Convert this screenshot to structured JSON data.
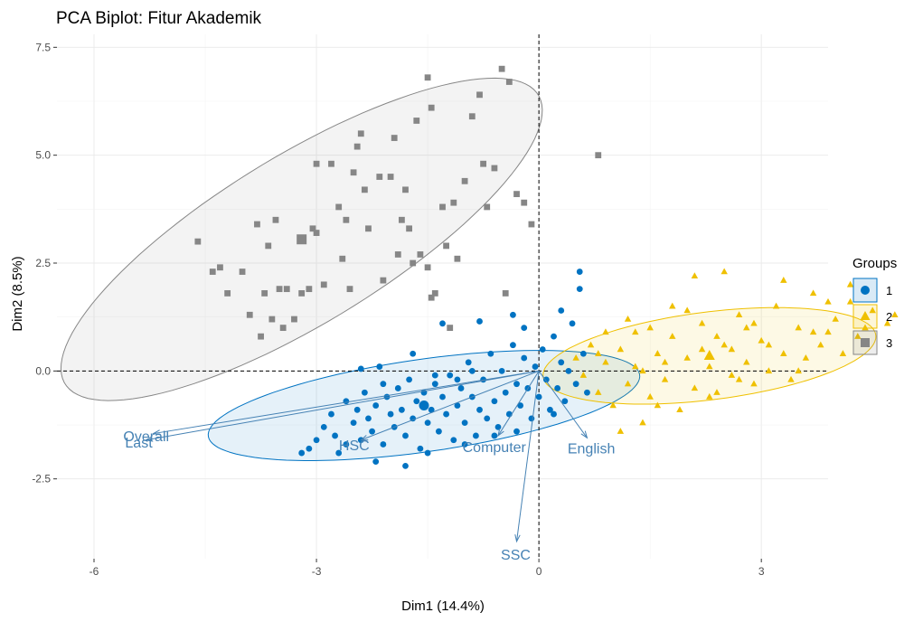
{
  "chart_data": {
    "type": "scatter",
    "title": "PCA Biplot: Fitur Akademik",
    "xlabel": "Dim1 (14.4%)",
    "ylabel": "Dim2 (8.5%)",
    "xlim": [
      -6.5,
      3.9
    ],
    "ylim": [
      -4.35,
      7.8
    ],
    "x_ticks": [
      -6,
      -3,
      0,
      3
    ],
    "x_tick_labels": [
      "-6",
      "-3",
      "0",
      "3"
    ],
    "y_ticks": [
      -2.5,
      0,
      2.5,
      5,
      7.5
    ],
    "y_tick_labels": [
      "-2.5",
      "0.0",
      "2.5",
      "5.0",
      "7.5"
    ],
    "grid": true,
    "reference_lines": {
      "x": 0,
      "y": 0,
      "style": "dashed"
    },
    "legend": {
      "title": "Groups",
      "position": "right",
      "entries": [
        {
          "label": "1",
          "color": "#0073C2",
          "shape": "circle"
        },
        {
          "label": "2",
          "color": "#EFC000",
          "shape": "triangle"
        },
        {
          "label": "3",
          "color": "#868686",
          "shape": "square"
        }
      ]
    },
    "groups": [
      {
        "name": "1",
        "color": "#0073C2",
        "shape": "circle",
        "ellipse": {
          "center": [
            -1.55,
            -0.8
          ],
          "rx": 3.0,
          "ry": 1.05,
          "angle_deg": 15.0
        },
        "points": [
          [
            -3.1,
            -1.8
          ],
          [
            -3.0,
            -1.6
          ],
          [
            -2.9,
            -1.3
          ],
          [
            -2.8,
            -1.0
          ],
          [
            -2.75,
            -1.5
          ],
          [
            -2.7,
            -1.9
          ],
          [
            -2.6,
            -0.7
          ],
          [
            -2.5,
            -1.2
          ],
          [
            -2.45,
            -0.9
          ],
          [
            -2.4,
            -1.6
          ],
          [
            -2.35,
            -0.5
          ],
          [
            -2.3,
            -1.1
          ],
          [
            -2.25,
            -1.4
          ],
          [
            -2.2,
            -0.8
          ],
          [
            -2.1,
            -1.7
          ],
          [
            -2.05,
            -0.6
          ],
          [
            -2.0,
            -1.0
          ],
          [
            -1.95,
            -1.3
          ],
          [
            -1.9,
            -0.4
          ],
          [
            -1.85,
            -0.9
          ],
          [
            -1.8,
            -1.5
          ],
          [
            -1.75,
            -0.2
          ],
          [
            -1.7,
            -1.1
          ],
          [
            -1.65,
            -0.7
          ],
          [
            -1.6,
            -1.8
          ],
          [
            -1.55,
            -0.5
          ],
          [
            -1.5,
            -1.2
          ],
          [
            -1.45,
            -0.9
          ],
          [
            -1.4,
            -0.3
          ],
          [
            -1.35,
            -1.4
          ],
          [
            -1.3,
            -0.6
          ],
          [
            -1.25,
            -1.0
          ],
          [
            -1.2,
            -0.1
          ],
          [
            -1.15,
            -1.6
          ],
          [
            -1.1,
            -0.8
          ],
          [
            -1.05,
            -0.4
          ],
          [
            -1.0,
            -1.2
          ],
          [
            -0.95,
            0.2
          ],
          [
            -0.9,
            -0.6
          ],
          [
            -0.85,
            -1.5
          ],
          [
            -0.8,
            -0.9
          ],
          [
            -0.75,
            -0.2
          ],
          [
            -0.7,
            -1.1
          ],
          [
            -0.65,
            0.4
          ],
          [
            -0.6,
            -0.7
          ],
          [
            -0.55,
            -1.3
          ],
          [
            -0.5,
            0.0
          ],
          [
            -0.45,
            -0.5
          ],
          [
            -0.4,
            -1.0
          ],
          [
            -0.35,
            0.6
          ],
          [
            -0.3,
            -0.3
          ],
          [
            -0.25,
            -0.8
          ],
          [
            -0.2,
            0.3
          ],
          [
            -0.15,
            -0.4
          ],
          [
            -0.1,
            -1.1
          ],
          [
            -0.05,
            0.1
          ],
          [
            0.0,
            -0.6
          ],
          [
            0.05,
            0.5
          ],
          [
            0.1,
            -0.2
          ],
          [
            0.15,
            -0.9
          ],
          [
            0.2,
            0.8
          ],
          [
            0.25,
            -0.4
          ],
          [
            0.3,
            0.2
          ],
          [
            0.35,
            -0.7
          ],
          [
            0.4,
            0.0
          ],
          [
            0.45,
            1.1
          ],
          [
            0.5,
            -0.3
          ],
          [
            0.55,
            2.3
          ],
          [
            0.6,
            0.4
          ],
          [
            0.65,
            -0.5
          ],
          [
            -1.3,
            1.1
          ],
          [
            -0.35,
            1.3
          ],
          [
            -0.8,
            1.15
          ],
          [
            -1.8,
            -2.2
          ],
          [
            -2.2,
            -2.1
          ],
          [
            -1.5,
            -1.9
          ],
          [
            -1.0,
            -1.7
          ],
          [
            -0.6,
            -1.5
          ],
          [
            -2.6,
            -1.7
          ],
          [
            -3.2,
            -1.9
          ],
          [
            -1.7,
            0.4
          ],
          [
            -2.1,
            -0.3
          ],
          [
            -1.4,
            -0.1
          ],
          [
            -0.9,
            0.0
          ],
          [
            -0.3,
            -1.4
          ],
          [
            0.2,
            -1.0
          ],
          [
            0.3,
            1.4
          ],
          [
            0.55,
            1.9
          ],
          [
            -0.2,
            1.0
          ],
          [
            -2.15,
            0.1
          ],
          [
            -2.4,
            0.05
          ],
          [
            -1.1,
            -0.2
          ]
        ]
      },
      {
        "name": "2",
        "color": "#EFC000",
        "shape": "triangle",
        "ellipse": {
          "center": [
            2.3,
            0.35
          ],
          "rx": 2.3,
          "ry": 1.0,
          "angle_deg": 14.0
        },
        "points": [
          [
            0.5,
            0.3
          ],
          [
            0.6,
            -0.1
          ],
          [
            0.7,
            0.6
          ],
          [
            0.8,
            -0.5
          ],
          [
            0.9,
            0.2
          ],
          [
            1.0,
            -0.8
          ],
          [
            1.1,
            0.5
          ],
          [
            1.2,
            -0.3
          ],
          [
            1.3,
            0.9
          ],
          [
            1.4,
            0.0
          ],
          [
            1.5,
            -0.6
          ],
          [
            1.6,
            0.4
          ],
          [
            1.7,
            -0.2
          ],
          [
            1.8,
            0.8
          ],
          [
            1.9,
            -0.9
          ],
          [
            2.0,
            0.3
          ],
          [
            2.1,
            -0.4
          ],
          [
            2.2,
            1.1
          ],
          [
            2.3,
            0.1
          ],
          [
            2.4,
            -0.5
          ],
          [
            2.5,
            0.6
          ],
          [
            2.6,
            -0.1
          ],
          [
            2.7,
            1.3
          ],
          [
            2.8,
            0.2
          ],
          [
            2.9,
            -0.3
          ],
          [
            3.0,
            0.7
          ],
          [
            3.1,
            0.0
          ],
          [
            3.2,
            1.5
          ],
          [
            3.3,
            0.4
          ],
          [
            3.4,
            -0.2
          ],
          [
            3.5,
            1.0
          ],
          [
            3.6,
            0.3
          ],
          [
            3.7,
            1.8
          ],
          [
            3.8,
            0.6
          ],
          [
            3.9,
            0.9
          ],
          [
            4.0,
            1.2
          ],
          [
            4.1,
            0.4
          ],
          [
            4.2,
            1.6
          ],
          [
            4.3,
            0.8
          ],
          [
            4.5,
            1.4
          ],
          [
            4.7,
            1.1
          ],
          [
            4.8,
            1.3
          ],
          [
            5.3,
            2.1
          ],
          [
            4.2,
            2.0
          ],
          [
            3.3,
            2.1
          ],
          [
            2.1,
            2.2
          ],
          [
            2.5,
            2.3
          ],
          [
            1.3,
            0.1
          ],
          [
            1.6,
            -0.8
          ],
          [
            1.8,
            1.5
          ],
          [
            2.6,
            0.5
          ],
          [
            2.9,
            1.1
          ],
          [
            3.5,
            0.0
          ],
          [
            1.2,
            1.2
          ],
          [
            0.9,
            0.9
          ],
          [
            2.3,
            -0.6
          ],
          [
            1.5,
            1.0
          ],
          [
            2.0,
            1.4
          ],
          [
            3.7,
            0.9
          ],
          [
            4.4,
            1.0
          ],
          [
            1.7,
            0.2
          ],
          [
            2.2,
            0.5
          ],
          [
            2.7,
            -0.2
          ],
          [
            3.1,
            0.6
          ],
          [
            1.1,
            -1.4
          ],
          [
            1.4,
            -1.2
          ],
          [
            0.8,
            0.4
          ],
          [
            2.4,
            0.8
          ],
          [
            3.9,
            1.6
          ],
          [
            2.8,
            1.0
          ]
        ]
      },
      {
        "name": "3",
        "color": "#868686",
        "shape": "square",
        "ellipse": {
          "center": [
            -3.2,
            3.05
          ],
          "rx": 4.7,
          "ry": 1.55,
          "angle_deg": 50.0
        },
        "points": [
          [
            -4.6,
            3.0
          ],
          [
            -4.4,
            2.3
          ],
          [
            -4.3,
            2.4
          ],
          [
            -4.2,
            1.8
          ],
          [
            -4.0,
            2.3
          ],
          [
            -3.9,
            1.3
          ],
          [
            -3.8,
            3.4
          ],
          [
            -3.75,
            0.8
          ],
          [
            -3.7,
            1.8
          ],
          [
            -3.65,
            2.9
          ],
          [
            -3.6,
            1.2
          ],
          [
            -3.55,
            3.5
          ],
          [
            -3.5,
            1.9
          ],
          [
            -3.45,
            1.0
          ],
          [
            -3.4,
            1.9
          ],
          [
            -3.3,
            1.2
          ],
          [
            -3.2,
            1.8
          ],
          [
            -3.1,
            1.9
          ],
          [
            -3.05,
            3.3
          ],
          [
            -3.0,
            4.8
          ],
          [
            -2.9,
            2.0
          ],
          [
            -2.8,
            4.8
          ],
          [
            -2.7,
            3.8
          ],
          [
            -2.65,
            2.6
          ],
          [
            -2.6,
            3.5
          ],
          [
            -2.55,
            1.9
          ],
          [
            -2.5,
            4.6
          ],
          [
            -2.45,
            5.2
          ],
          [
            -2.4,
            5.5
          ],
          [
            -2.3,
            3.3
          ],
          [
            -2.15,
            4.5
          ],
          [
            -2.1,
            2.1
          ],
          [
            -2.0,
            4.5
          ],
          [
            -1.95,
            5.4
          ],
          [
            -1.9,
            2.7
          ],
          [
            -1.85,
            3.5
          ],
          [
            -1.75,
            3.3
          ],
          [
            -1.7,
            2.5
          ],
          [
            -1.65,
            5.8
          ],
          [
            -1.6,
            2.7
          ],
          [
            -1.5,
            2.4
          ],
          [
            -1.45,
            1.7
          ],
          [
            -1.4,
            1.8
          ],
          [
            -1.3,
            3.8
          ],
          [
            -1.25,
            2.9
          ],
          [
            -1.2,
            1.0
          ],
          [
            -1.1,
            2.6
          ],
          [
            -1.0,
            4.4
          ],
          [
            -0.9,
            5.9
          ],
          [
            -0.8,
            6.4
          ],
          [
            -0.75,
            4.8
          ],
          [
            -0.7,
            3.8
          ],
          [
            -0.6,
            4.7
          ],
          [
            -0.5,
            7.0
          ],
          [
            -0.45,
            1.8
          ],
          [
            -0.3,
            4.1
          ],
          [
            -0.2,
            3.9
          ],
          [
            -1.8,
            4.2
          ],
          [
            -1.45,
            6.1
          ],
          [
            -1.5,
            6.8
          ],
          [
            0.8,
            5.0
          ],
          [
            -0.4,
            6.7
          ],
          [
            -2.35,
            4.2
          ],
          [
            -0.1,
            3.4
          ],
          [
            -1.15,
            3.9
          ],
          [
            -3.0,
            3.2
          ]
        ]
      }
    ],
    "variables": [
      {
        "name": "Overall",
        "end": [
          -5.2,
          -1.45
        ]
      },
      {
        "name": "Last",
        "end": [
          -5.3,
          -1.6
        ]
      },
      {
        "name": "HSC",
        "end": [
          -2.4,
          -1.6
        ]
      },
      {
        "name": "Computer",
        "end": [
          -0.55,
          -1.5
        ]
      },
      {
        "name": "English",
        "end": [
          0.65,
          -1.55
        ]
      },
      {
        "name": "SSC",
        "end": [
          -0.3,
          -3.95
        ]
      }
    ]
  }
}
